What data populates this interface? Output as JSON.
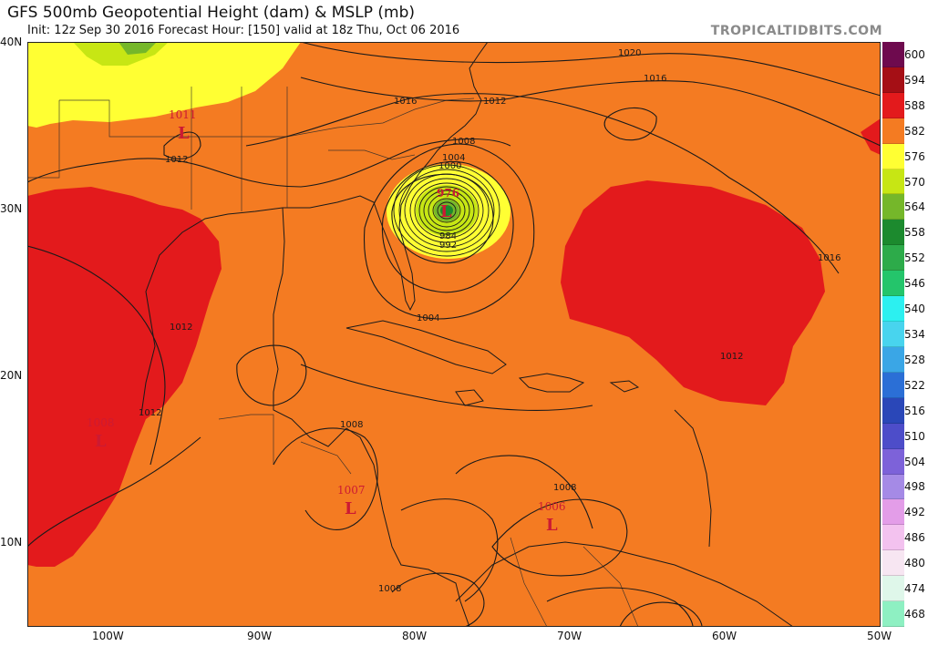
{
  "header": {
    "title": "GFS 500mb Geopotential Height (dam) & MSLP (mb)",
    "subtitle": "Init: 12z Sep 30 2016   Forecast Hour: [150]   valid at 18z Thu, Oct 06 2016",
    "brand": "TROPICALTIDBITS.COM"
  },
  "axes": {
    "lat_labels": [
      "40N",
      "30N",
      "20N",
      "10N"
    ],
    "lon_labels": [
      "100W",
      "90W",
      "80W",
      "70W",
      "60W",
      "50W"
    ]
  },
  "colorbar": {
    "levels": [
      "600",
      "594",
      "588",
      "582",
      "576",
      "570",
      "564",
      "558",
      "552",
      "546",
      "540",
      "534",
      "528",
      "522",
      "516",
      "510",
      "504",
      "498",
      "492",
      "486",
      "480",
      "474",
      "468"
    ],
    "colors": [
      "#6e0a4e",
      "#a50f15",
      "#e31a1c",
      "#f47b22",
      "#ffff33",
      "#c7e614",
      "#75b72a",
      "#1c8a2e",
      "#2dab4a",
      "#24c56b",
      "#2cf0f0",
      "#48d4ee",
      "#3aa6e6",
      "#2b6fd6",
      "#2a47b8",
      "#4d4dc9",
      "#7d62d9",
      "#a58ae6",
      "#e39de8",
      "#f3c2ef",
      "#f7e6f2",
      "#dff7ea",
      "#8ef0c2"
    ]
  },
  "map": {
    "colors": {
      "height_588": "#e31a1c",
      "height_582": "#f47b22",
      "height_576": "#ffff33",
      "height_570": "#c7e614",
      "height_564": "#75b72a",
      "height_558": "#1c8a2e",
      "isobar": "#1a1a1a",
      "low_marker": "#cc1a33",
      "coastline": "#1a1a1a"
    },
    "isobar_labels": [
      "1020",
      "1016",
      "1016",
      "1012",
      "1016",
      "1008",
      "1004",
      "1000",
      "976",
      "984",
      "992",
      "1012",
      "1012",
      "1016",
      "1012",
      "1012",
      "1004",
      "1008",
      "1008",
      "1008",
      "1008"
    ],
    "lows": [
      {
        "pressure": "1011",
        "symbol": "L"
      },
      {
        "pressure": "976",
        "symbol": "L"
      },
      {
        "pressure": "1008",
        "symbol": "L"
      },
      {
        "pressure": "1007",
        "symbol": "L"
      },
      {
        "pressure": "1006",
        "symbol": "L"
      }
    ]
  }
}
